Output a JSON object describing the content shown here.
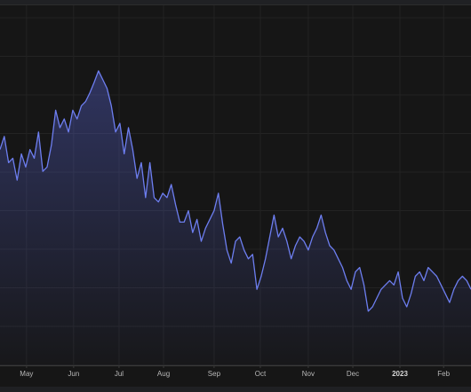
{
  "chart_data": {
    "type": "area-line",
    "color": "#6d7ef0",
    "values": [
      247,
      262,
      232,
      237,
      212,
      242,
      227,
      247,
      237,
      267,
      222,
      227,
      252,
      292,
      272,
      282,
      267,
      292,
      282,
      297,
      302,
      312,
      324,
      337,
      327,
      317,
      297,
      267,
      277,
      242,
      272,
      247,
      214,
      232,
      192,
      232,
      192,
      187,
      197,
      192,
      207,
      184,
      164,
      164,
      177,
      152,
      167,
      142,
      157,
      167,
      177,
      197,
      162,
      132,
      117,
      142,
      147,
      132,
      122,
      127,
      87,
      102,
      122,
      147,
      172,
      147,
      157,
      142,
      122,
      137,
      147,
      142,
      132,
      147,
      157,
      172,
      152,
      137,
      132,
      122,
      112,
      97,
      87,
      107,
      112,
      92,
      62,
      67,
      77,
      87,
      92,
      97,
      92,
      107,
      77,
      67,
      82,
      102,
      107,
      97,
      112,
      107,
      102,
      92,
      82,
      72,
      87,
      97,
      102,
      97,
      87
    ],
    "xlim": [
      0,
      110
    ],
    "ylim": [
      0,
      412
    ],
    "xticks": [
      {
        "value": 6.2,
        "label": "May"
      },
      {
        "value": 17.2,
        "label": "Jun"
      },
      {
        "value": 27.8,
        "label": "Jul"
      },
      {
        "value": 38.2,
        "label": "Aug"
      },
      {
        "value": 50,
        "label": "Sep"
      },
      {
        "value": 60.8,
        "label": "Oct"
      },
      {
        "value": 72,
        "label": "Nov"
      },
      {
        "value": 82.4,
        "label": "Dec"
      },
      {
        "value": 93.4,
        "label": "2023"
      },
      {
        "value": 103.6,
        "label": "Feb"
      }
    ],
    "grid": true
  }
}
